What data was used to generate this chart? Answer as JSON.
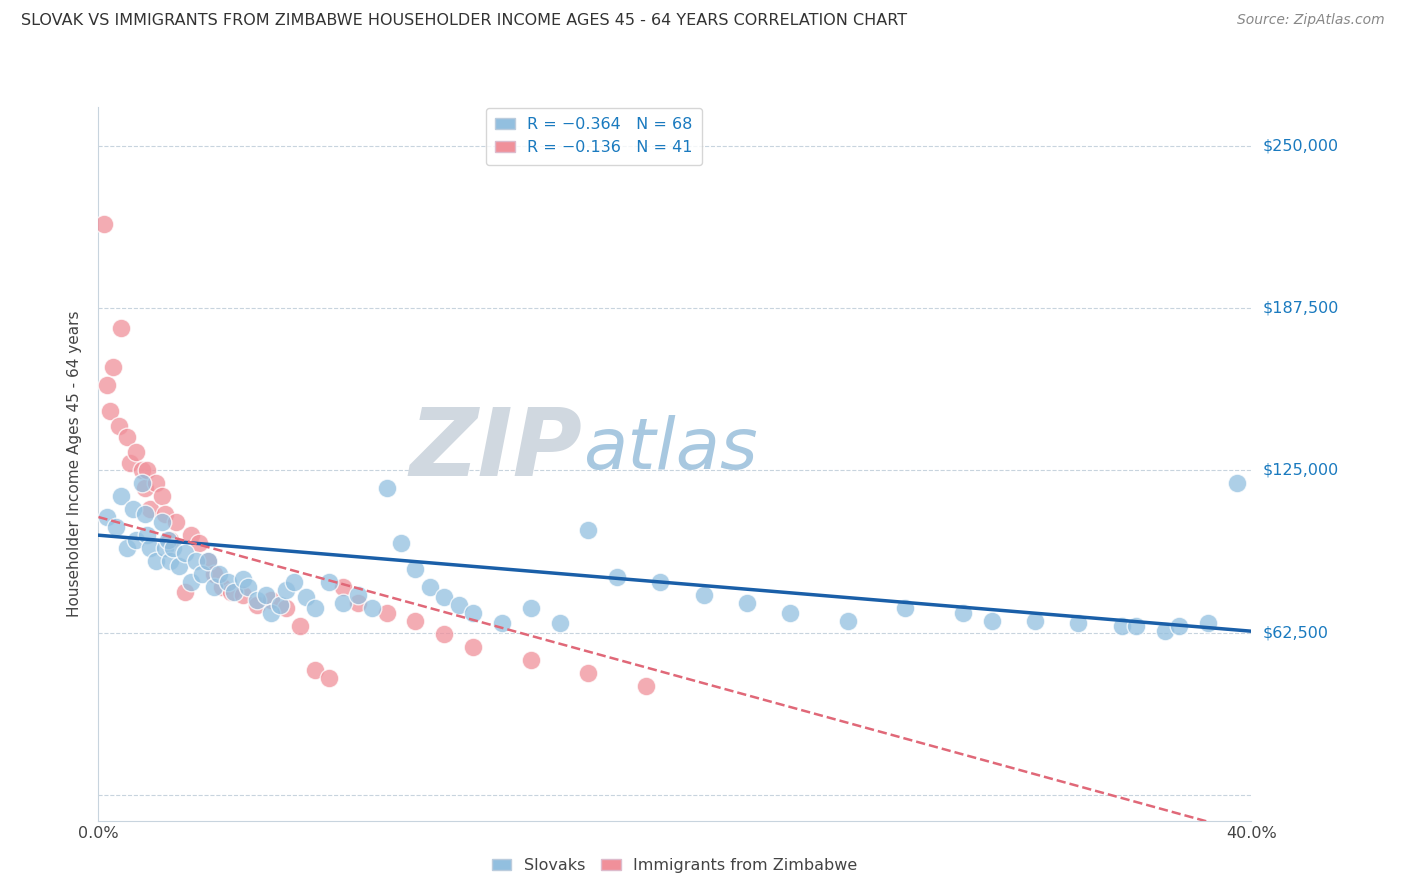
{
  "title": "SLOVAK VS IMMIGRANTS FROM ZIMBABWE HOUSEHOLDER INCOME AGES 45 - 64 YEARS CORRELATION CHART",
  "source": "Source: ZipAtlas.com",
  "ylabel": "Householder Income Ages 45 - 64 years",
  "xlim": [
    0.0,
    0.4
  ],
  "ylim": [
    -10000,
    265000
  ],
  "yticks": [
    0,
    62500,
    125000,
    187500,
    250000
  ],
  "ytick_labels": [
    "",
    "$62,500",
    "$125,000",
    "$187,500",
    "$250,000"
  ],
  "xticks": [
    0.0,
    0.1,
    0.2,
    0.3,
    0.4
  ],
  "xtick_labels": [
    "0.0%",
    "",
    "",
    "",
    "40.0%"
  ],
  "slovaks_color": "#92bfdf",
  "zimbabwe_color": "#f0909a",
  "trendline_slovak_color": "#1a5fa8",
  "trendline_zimbabwe_color": "#e06878",
  "background_color": "#ffffff",
  "grid_color": "#c8d4de",
  "watermark_zip_color": "#d0d8e0",
  "watermark_atlas_color": "#a8c8e0",
  "slovaks_x": [
    0.003,
    0.006,
    0.008,
    0.01,
    0.012,
    0.013,
    0.015,
    0.016,
    0.017,
    0.018,
    0.02,
    0.022,
    0.023,
    0.024,
    0.025,
    0.026,
    0.028,
    0.03,
    0.032,
    0.034,
    0.036,
    0.038,
    0.04,
    0.042,
    0.045,
    0.047,
    0.05,
    0.052,
    0.055,
    0.058,
    0.06,
    0.063,
    0.065,
    0.068,
    0.072,
    0.075,
    0.08,
    0.085,
    0.09,
    0.095,
    0.1,
    0.105,
    0.11,
    0.115,
    0.12,
    0.125,
    0.13,
    0.14,
    0.15,
    0.16,
    0.17,
    0.18,
    0.195,
    0.21,
    0.225,
    0.24,
    0.26,
    0.28,
    0.3,
    0.31,
    0.325,
    0.34,
    0.355,
    0.36,
    0.37,
    0.375,
    0.385,
    0.395
  ],
  "slovaks_y": [
    107000,
    103000,
    115000,
    95000,
    110000,
    98000,
    120000,
    108000,
    100000,
    95000,
    90000,
    105000,
    95000,
    98000,
    90000,
    95000,
    88000,
    93000,
    82000,
    90000,
    85000,
    90000,
    80000,
    85000,
    82000,
    78000,
    83000,
    80000,
    75000,
    77000,
    70000,
    73000,
    79000,
    82000,
    76000,
    72000,
    82000,
    74000,
    77000,
    72000,
    118000,
    97000,
    87000,
    80000,
    76000,
    73000,
    70000,
    66000,
    72000,
    66000,
    102000,
    84000,
    82000,
    77000,
    74000,
    70000,
    67000,
    72000,
    70000,
    67000,
    67000,
    66000,
    65000,
    65000,
    63000,
    65000,
    66000,
    120000
  ],
  "zimbabwe_x": [
    0.002,
    0.003,
    0.004,
    0.005,
    0.007,
    0.008,
    0.01,
    0.011,
    0.013,
    0.015,
    0.016,
    0.017,
    0.018,
    0.02,
    0.022,
    0.023,
    0.025,
    0.027,
    0.03,
    0.032,
    0.035,
    0.038,
    0.04,
    0.043,
    0.046,
    0.05,
    0.055,
    0.06,
    0.065,
    0.07,
    0.075,
    0.08,
    0.085,
    0.09,
    0.1,
    0.11,
    0.12,
    0.13,
    0.15,
    0.17,
    0.19
  ],
  "zimbabwe_y": [
    220000,
    158000,
    148000,
    165000,
    142000,
    180000,
    138000,
    128000,
    132000,
    125000,
    118000,
    125000,
    110000,
    120000,
    115000,
    108000,
    98000,
    105000,
    78000,
    100000,
    97000,
    90000,
    85000,
    80000,
    78000,
    77000,
    73000,
    75000,
    72000,
    65000,
    48000,
    45000,
    80000,
    74000,
    70000,
    67000,
    62000,
    57000,
    52000,
    47000,
    42000
  ],
  "trendline_slovak_x0": 0.0,
  "trendline_slovak_x1": 0.4,
  "trendline_slovak_y0": 100000,
  "trendline_slovak_y1": 63000,
  "trendline_zimbabwe_x0": 0.0,
  "trendline_zimbabwe_x1": 0.4,
  "trendline_zimbabwe_y0": 107000,
  "trendline_zimbabwe_y1": -15000
}
